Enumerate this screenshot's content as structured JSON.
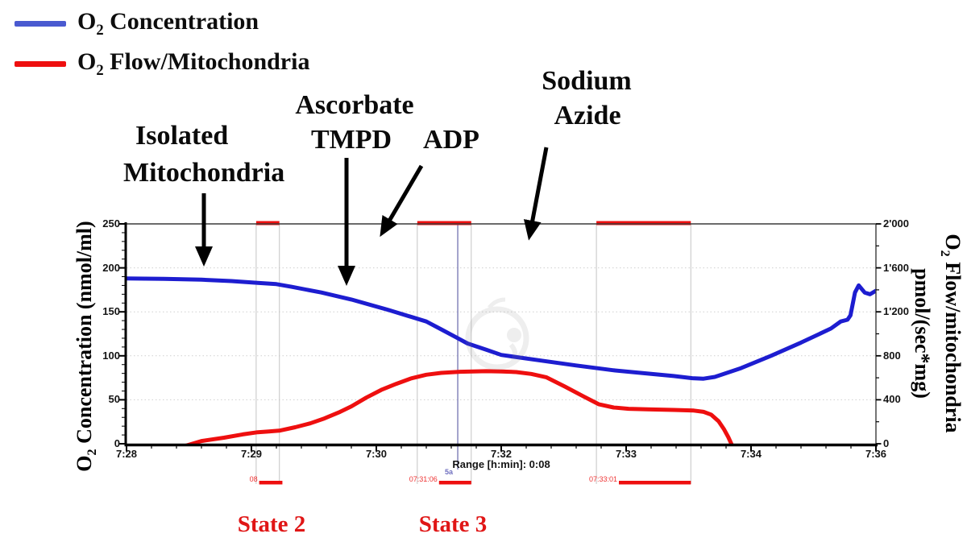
{
  "legend": {
    "items": [
      {
        "pre": "O",
        "sub": "2",
        "post": " Concentration",
        "color": "#4a5ad0"
      },
      {
        "pre": "O",
        "sub": "2",
        "post": " Flow/Mitochondria",
        "color": "#ee0f0f"
      }
    ]
  },
  "annotations": {
    "isolated_line1": "Isolated",
    "isolated_line2": "Mitochondria",
    "ascorbate": "Ascorbate",
    "tmpd": "TMPD",
    "adp": "ADP",
    "azide_line1": "Sodium",
    "azide_line2": "Azide",
    "state2": "State 2",
    "state3": "State 3",
    "state_color": "#e01616"
  },
  "axes_titles": {
    "left": {
      "pre": "O",
      "sub": "2",
      "post": " Concentration (nmol/ml)"
    },
    "right_line1": {
      "pre": "O",
      "sub": "2",
      "post": " Flow/mitochondria"
    },
    "right_line2": "pmol/(sec*mg)"
  },
  "chart_data": {
    "type": "line",
    "title": "",
    "x_axis": {
      "unit": "h:min",
      "labels": [
        {
          "f": 0,
          "t": "7:28"
        },
        {
          "f": 0.1667,
          "t": "7:29"
        },
        {
          "f": 0.3333,
          "t": "7:30"
        },
        {
          "f": 0.5,
          "t": "7:32"
        },
        {
          "f": 0.6667,
          "t": "7:33"
        },
        {
          "f": 0.8333,
          "t": "7:34"
        },
        {
          "f": 1,
          "t": "7:36"
        }
      ],
      "range_note": "Range [h:min]: 0:08"
    },
    "y_left": {
      "label": "O2 Concentration (nmol/ml)",
      "range": [
        0,
        250
      ],
      "ticks": [
        250,
        200,
        150,
        100,
        50,
        0
      ],
      "grid_values": [
        50,
        100,
        150,
        200
      ]
    },
    "y_right": {
      "label": "O2 Flow/mitochondria pmol/(sec*mg)",
      "range": [
        0,
        2000
      ],
      "ticks": [
        {
          "v": 2000,
          "label": "2'000"
        },
        {
          "v": 1600,
          "label": "1'600"
        },
        {
          "v": 1200,
          "label": "1'200"
        },
        {
          "v": 800,
          "label": "800"
        },
        {
          "v": 400,
          "label": "400"
        },
        {
          "v": 0,
          "label": "0"
        }
      ]
    },
    "series": [
      {
        "name": "O2 Concentration",
        "axis": "left",
        "color": "#1d1dd0",
        "points": [
          [
            0,
            188
          ],
          [
            0.05,
            187.5
          ],
          [
            0.1,
            186.5
          ],
          [
            0.14,
            185
          ],
          [
            0.175,
            183
          ],
          [
            0.2,
            181.5
          ],
          [
            0.22,
            178.5
          ],
          [
            0.26,
            172
          ],
          [
            0.3,
            164
          ],
          [
            0.35,
            152
          ],
          [
            0.4,
            139
          ],
          [
            0.42,
            130
          ],
          [
            0.44,
            121
          ],
          [
            0.455,
            114
          ],
          [
            0.48,
            107
          ],
          [
            0.5,
            101
          ],
          [
            0.55,
            95
          ],
          [
            0.6,
            89
          ],
          [
            0.65,
            83.5
          ],
          [
            0.7,
            79.5
          ],
          [
            0.73,
            77
          ],
          [
            0.755,
            74.5
          ],
          [
            0.77,
            74
          ],
          [
            0.785,
            76
          ],
          [
            0.82,
            86
          ],
          [
            0.86,
            100
          ],
          [
            0.9,
            115
          ],
          [
            0.94,
            131
          ],
          [
            0.953,
            139
          ],
          [
            0.962,
            141
          ],
          [
            0.966,
            146
          ],
          [
            0.972,
            172
          ],
          [
            0.977,
            180
          ],
          [
            0.985,
            172
          ],
          [
            0.992,
            170
          ],
          [
            1,
            174
          ]
        ]
      },
      {
        "name": "O2 Flow/Mitochondria",
        "axis": "right",
        "color": "#ee0f0f",
        "points": [
          [
            0.073,
            -30
          ],
          [
            0.1,
            25
          ],
          [
            0.13,
            55
          ],
          [
            0.155,
            85
          ],
          [
            0.175,
            105
          ],
          [
            0.19,
            112
          ],
          [
            0.205,
            120
          ],
          [
            0.225,
            150
          ],
          [
            0.245,
            185
          ],
          [
            0.264,
            230
          ],
          [
            0.285,
            290
          ],
          [
            0.3,
            340
          ],
          [
            0.32,
            420
          ],
          [
            0.34,
            490
          ],
          [
            0.36,
            545
          ],
          [
            0.38,
            595
          ],
          [
            0.4,
            628
          ],
          [
            0.42,
            645
          ],
          [
            0.445,
            655
          ],
          [
            0.48,
            660
          ],
          [
            0.5,
            658
          ],
          [
            0.52,
            652
          ],
          [
            0.54,
            635
          ],
          [
            0.56,
            605
          ],
          [
            0.585,
            520
          ],
          [
            0.61,
            430
          ],
          [
            0.63,
            360
          ],
          [
            0.65,
            330
          ],
          [
            0.67,
            318
          ],
          [
            0.7,
            312
          ],
          [
            0.73,
            308
          ],
          [
            0.757,
            302
          ],
          [
            0.77,
            290
          ],
          [
            0.78,
            265
          ],
          [
            0.79,
            205
          ],
          [
            0.797,
            135
          ],
          [
            0.803,
            60
          ],
          [
            0.809,
            -30
          ]
        ]
      }
    ],
    "marks": [
      {
        "name": "state2-mark",
        "top_bar": [
          0.173,
          0.204
        ],
        "bottom_bar": [
          0.177,
          0.208
        ],
        "time_label": "08"
      },
      {
        "name": "state3-mark",
        "top_bar": [
          0.388,
          0.46
        ],
        "bottom_bar": [
          0.417,
          0.46
        ],
        "time_label": "07:31:06"
      },
      {
        "name": "azide-mark",
        "top_bar": [
          0.627,
          0.753
        ],
        "bottom_bar": [
          0.657,
          0.753
        ],
        "time_label": "07:33:01"
      }
    ],
    "event": {
      "label": "5a",
      "f": 0.442
    },
    "colors": {
      "concentration": "#1d1dd0",
      "flow": "#ee0f0f",
      "grid": "#cfcfcf",
      "mark_line": "#c4c4c4",
      "event_line": "#8585bb",
      "mark_text": "#ee3333",
      "event_text": "#7070c0"
    }
  }
}
